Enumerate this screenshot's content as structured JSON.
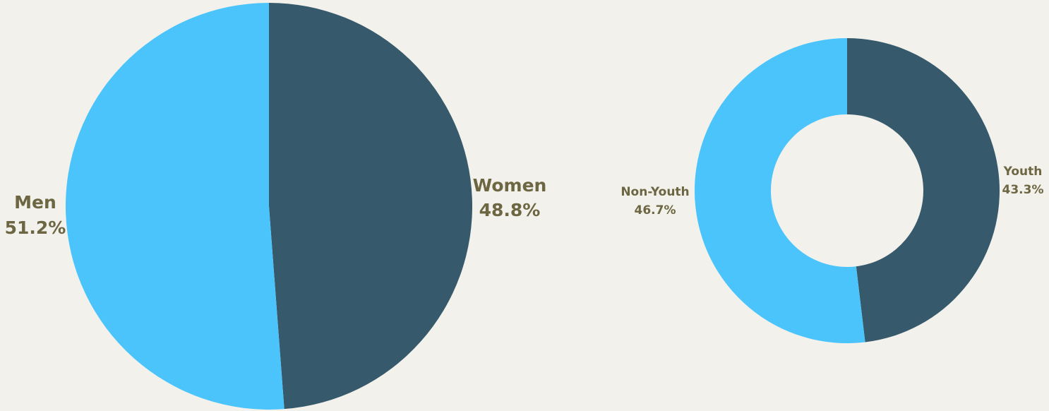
{
  "chart_data": [
    {
      "type": "pie",
      "title": "",
      "slices": [
        {
          "label": "Women",
          "value": 48.8,
          "value_label": "48.8%",
          "color": "#36596b"
        },
        {
          "label": "Men",
          "value": 51.2,
          "value_label": "51.2%",
          "color": "#4bc4fc"
        }
      ]
    },
    {
      "type": "pie",
      "variant": "donut",
      "title": "",
      "slices": [
        {
          "label": "Youth",
          "value": 43.3,
          "value_label": "43.3%",
          "color": "#36596b"
        },
        {
          "label": "Non-Youth",
          "value": 46.7,
          "value_label": "46.7%",
          "color": "#4bc4fc"
        }
      ]
    }
  ]
}
